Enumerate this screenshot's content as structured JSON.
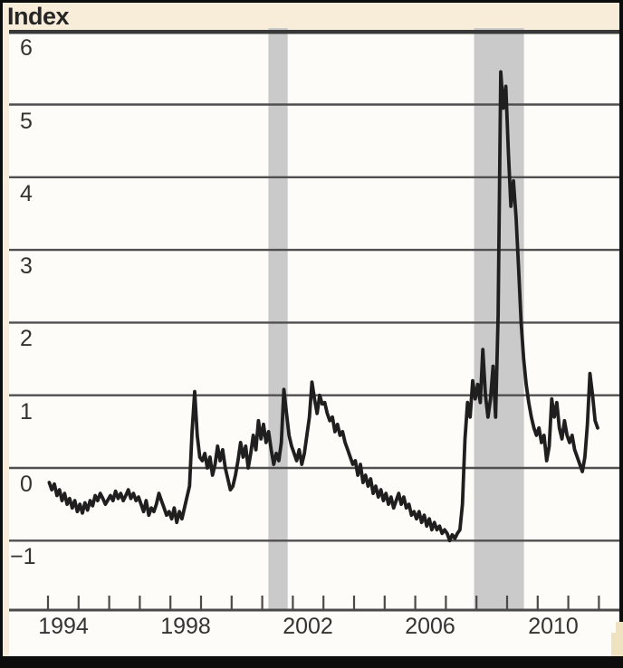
{
  "title": "Index",
  "colors": {
    "frame": "#0d0d0d",
    "page_background": "#fdfcf8",
    "margin_cream": "#f7edd8",
    "recession_band": "#cacaca",
    "gridline": "#4f4f4f",
    "top_rule": "#383838",
    "axis": "#4a4a4a",
    "series_line": "#1f1f1f",
    "label_text": "#333333",
    "logo_fragment": "#eee2c0"
  },
  "chart_data": {
    "type": "line",
    "title": "Index",
    "ylabel": "Index",
    "xlabel": "",
    "grid": "horizontal",
    "legend": "none",
    "ylim": [
      -2,
      6
    ],
    "xlim": [
      1992.7,
      2012.7
    ],
    "y_ticks": [
      6,
      5,
      4,
      3,
      2,
      1,
      0,
      -1
    ],
    "y_tick_labels": [
      "6",
      "5",
      "4",
      "3",
      "2",
      "1",
      "0",
      "−1"
    ],
    "x_ticks": [
      1994,
      1995,
      1996,
      1997,
      1998,
      1999,
      2000,
      2001,
      2002,
      2003,
      2004,
      2005,
      2006,
      2007,
      2008,
      2009,
      2010,
      2011,
      2012
    ],
    "x_tick_labels": [
      "1994",
      "1998",
      "2002",
      "2006",
      "2010"
    ],
    "shaded_bands": [
      {
        "start": 2001.2,
        "end": 2001.83
      },
      {
        "start": 2007.92,
        "end": 2009.55
      }
    ],
    "series": [
      {
        "name": "Index",
        "frequency": "monthly",
        "start_year": 1994,
        "values": [
          -0.2,
          -0.3,
          -0.22,
          -0.38,
          -0.3,
          -0.45,
          -0.35,
          -0.5,
          -0.42,
          -0.55,
          -0.45,
          -0.6,
          -0.5,
          -0.62,
          -0.48,
          -0.58,
          -0.45,
          -0.52,
          -0.38,
          -0.45,
          -0.35,
          -0.42,
          -0.5,
          -0.44,
          -0.38,
          -0.45,
          -0.32,
          -0.42,
          -0.35,
          -0.45,
          -0.38,
          -0.3,
          -0.42,
          -0.35,
          -0.45,
          -0.4,
          -0.5,
          -0.6,
          -0.45,
          -0.65,
          -0.55,
          -0.6,
          -0.5,
          -0.35,
          -0.45,
          -0.55,
          -0.65,
          -0.6,
          -0.7,
          -0.55,
          -0.75,
          -0.6,
          -0.7,
          -0.55,
          -0.4,
          -0.25,
          0.5,
          1.05,
          0.45,
          0.15,
          0.1,
          0.2,
          0.0,
          0.15,
          -0.1,
          0.05,
          0.3,
          0.1,
          0.25,
          0.0,
          -0.15,
          -0.3,
          -0.25,
          -0.1,
          0.1,
          0.35,
          0.15,
          0.3,
          0.0,
          0.2,
          0.45,
          0.25,
          0.65,
          0.4,
          0.6,
          0.35,
          0.5,
          0.25,
          0.05,
          0.2,
          0.1,
          0.35,
          1.08,
          0.75,
          0.45,
          0.3,
          0.2,
          0.1,
          0.25,
          0.05,
          0.2,
          0.45,
          0.7,
          1.18,
          0.95,
          0.75,
          1.0,
          0.88,
          0.9,
          0.75,
          0.65,
          0.7,
          0.5,
          0.6,
          0.45,
          0.5,
          0.35,
          0.25,
          0.15,
          0.05,
          0.1,
          -0.1,
          0.05,
          -0.2,
          -0.1,
          -0.25,
          -0.15,
          -0.35,
          -0.25,
          -0.4,
          -0.3,
          -0.45,
          -0.35,
          -0.5,
          -0.4,
          -0.55,
          -0.45,
          -0.35,
          -0.5,
          -0.4,
          -0.55,
          -0.5,
          -0.65,
          -0.6,
          -0.7,
          -0.6,
          -0.75,
          -0.65,
          -0.8,
          -0.7,
          -0.85,
          -0.75,
          -0.85,
          -0.8,
          -0.9,
          -0.85,
          -0.9,
          -1.0,
          -0.92,
          -0.97,
          -0.9,
          -0.85,
          -0.5,
          0.4,
          0.9,
          0.7,
          1.2,
          0.95,
          1.15,
          0.9,
          1.63,
          1.0,
          0.7,
          0.95,
          1.4,
          0.7,
          2.1,
          5.45,
          4.95,
          5.25,
          4.35,
          3.6,
          3.95,
          3.45,
          2.75,
          2.0,
          1.5,
          1.15,
          0.9,
          0.7,
          0.55,
          0.45,
          0.55,
          0.35,
          0.45,
          0.1,
          0.3,
          0.95,
          0.7,
          0.9,
          0.55,
          0.4,
          0.65,
          0.45,
          0.35,
          0.45,
          0.25,
          0.15,
          0.05,
          -0.05,
          0.15,
          0.6,
          1.3,
          1.0,
          0.65,
          0.55
        ]
      }
    ]
  }
}
